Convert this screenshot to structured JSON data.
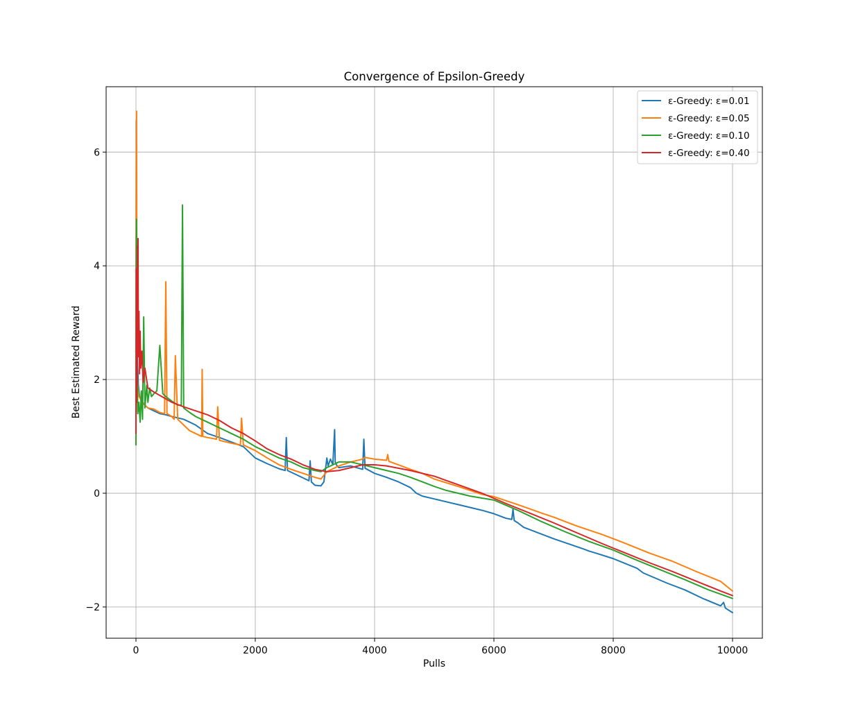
{
  "chart_data": {
    "type": "line",
    "title": "Convergence of Epsilon-Greedy",
    "xlabel": "Pulls",
    "ylabel": "Best Estimated Reward",
    "xlim": [
      -500,
      10500
    ],
    "ylim": [
      -2.55,
      7.15
    ],
    "x_ticks": [
      0,
      2000,
      4000,
      6000,
      8000,
      10000
    ],
    "x_tick_labels": [
      "0",
      "2000",
      "4000",
      "6000",
      "8000",
      "10000"
    ],
    "y_ticks": [
      -2,
      0,
      2,
      4,
      6
    ],
    "y_tick_labels": [
      "−2",
      "0",
      "2",
      "4",
      "6"
    ],
    "grid": true,
    "legend_position": "top-right",
    "series": [
      {
        "name": "ε-Greedy: ε=0.01",
        "color": "#1f77b4",
        "x": [
          0,
          5,
          10,
          20,
          40,
          60,
          100,
          150,
          200,
          300,
          400,
          500,
          600,
          800,
          1000,
          1200,
          1400,
          1600,
          1800,
          2000,
          2200,
          2400,
          2500,
          2520,
          2540,
          2700,
          2900,
          2920,
          2940,
          3000,
          3100,
          3150,
          3200,
          3220,
          3260,
          3300,
          3330,
          3340,
          3360,
          3400,
          3600,
          3800,
          3820,
          3840,
          4000,
          4200,
          4400,
          4600,
          4700,
          4800,
          5000,
          5400,
          5800,
          6000,
          6200,
          6300,
          6320,
          6340,
          6400,
          6500,
          7000,
          7500,
          7600,
          7700,
          8000,
          8400,
          8500,
          8900,
          9200,
          9500,
          9800,
          9850,
          9880,
          10000
        ],
        "y": [
          1.0,
          6.55,
          1.8,
          2.5,
          1.9,
          1.7,
          1.6,
          1.55,
          1.5,
          1.45,
          1.4,
          1.38,
          1.35,
          1.3,
          1.2,
          1.05,
          0.98,
          0.9,
          0.82,
          0.62,
          0.52,
          0.43,
          0.4,
          0.98,
          0.4,
          0.32,
          0.22,
          0.57,
          0.2,
          0.14,
          0.13,
          0.2,
          0.62,
          0.48,
          0.6,
          0.5,
          1.12,
          0.55,
          0.5,
          0.45,
          0.48,
          0.42,
          0.95,
          0.44,
          0.35,
          0.28,
          0.2,
          0.1,
          0.0,
          -0.05,
          -0.1,
          -0.2,
          -0.3,
          -0.36,
          -0.44,
          -0.46,
          -0.28,
          -0.48,
          -0.52,
          -0.6,
          -0.8,
          -0.98,
          -1.02,
          -1.05,
          -1.15,
          -1.32,
          -1.4,
          -1.58,
          -1.7,
          -1.85,
          -1.98,
          -1.92,
          -2.02,
          -2.1
        ]
      },
      {
        "name": "ε-Greedy: ε=0.05",
        "color": "#ff7f0e",
        "x": [
          0,
          5,
          10,
          15,
          20,
          30,
          50,
          100,
          150,
          200,
          300,
          400,
          480,
          500,
          520,
          600,
          640,
          660,
          700,
          800,
          900,
          1000,
          1100,
          1110,
          1120,
          1200,
          1350,
          1370,
          1400,
          1600,
          1750,
          1770,
          1800,
          2000,
          2200,
          2400,
          2600,
          2800,
          3000,
          3100,
          3200,
          3400,
          3600,
          3800,
          3820,
          3840,
          4000,
          4200,
          4220,
          4240,
          4400,
          4600,
          4800,
          5000,
          5400,
          5800,
          6000,
          6400,
          6800,
          7000,
          7400,
          7800,
          8200,
          8600,
          9000,
          9400,
          9800,
          10000
        ],
        "y": [
          1.2,
          5.8,
          6.72,
          3.5,
          2.1,
          1.85,
          1.7,
          1.62,
          1.55,
          1.5,
          1.48,
          1.42,
          1.4,
          3.72,
          1.4,
          1.35,
          1.3,
          2.42,
          1.3,
          1.2,
          1.1,
          1.05,
          1.0,
          2.18,
          1.0,
          0.98,
          0.95,
          1.52,
          0.93,
          0.88,
          0.85,
          1.32,
          0.85,
          0.75,
          0.62,
          0.5,
          0.42,
          0.35,
          0.28,
          0.25,
          0.38,
          0.48,
          0.55,
          0.6,
          0.62,
          0.63,
          0.6,
          0.58,
          0.68,
          0.56,
          0.5,
          0.42,
          0.35,
          0.25,
          0.12,
          -0.02,
          -0.06,
          -0.2,
          -0.35,
          -0.42,
          -0.58,
          -0.72,
          -0.88,
          -1.05,
          -1.2,
          -1.38,
          -1.55,
          -1.72
        ]
      },
      {
        "name": "ε-Greedy: ε=0.10",
        "color": "#2ca02c",
        "x": [
          0,
          5,
          10,
          15,
          20,
          30,
          50,
          70,
          90,
          110,
          130,
          150,
          180,
          200,
          230,
          260,
          300,
          350,
          400,
          450,
          500,
          600,
          700,
          760,
          780,
          800,
          900,
          1000,
          1200,
          1400,
          1600,
          1800,
          2000,
          2200,
          2400,
          2600,
          2800,
          3000,
          3100,
          3200,
          3400,
          3600,
          3800,
          4000,
          4200,
          4400,
          4600,
          4800,
          5000,
          5200,
          5600,
          6000,
          6400,
          6800,
          7200,
          7600,
          8000,
          8400,
          8800,
          9200,
          9600,
          10000
        ],
        "y": [
          0.85,
          4.05,
          4.82,
          1.6,
          2.2,
          1.4,
          1.6,
          1.25,
          1.8,
          1.3,
          3.1,
          1.5,
          1.9,
          1.6,
          1.85,
          1.7,
          1.75,
          1.8,
          2.6,
          1.75,
          1.7,
          1.62,
          1.55,
          1.55,
          5.07,
          1.5,
          1.42,
          1.35,
          1.25,
          1.15,
          1.05,
          0.95,
          0.82,
          0.72,
          0.62,
          0.55,
          0.45,
          0.4,
          0.38,
          0.45,
          0.55,
          0.55,
          0.5,
          0.45,
          0.4,
          0.35,
          0.28,
          0.2,
          0.12,
          0.05,
          -0.05,
          -0.12,
          -0.3,
          -0.5,
          -0.68,
          -0.85,
          -1.0,
          -1.18,
          -1.35,
          -1.52,
          -1.7,
          -1.85
        ]
      },
      {
        "name": "ε-Greedy: ε=0.40",
        "color": "#d62728",
        "x": [
          0,
          5,
          10,
          15,
          20,
          25,
          30,
          35,
          40,
          50,
          60,
          70,
          80,
          100,
          120,
          150,
          200,
          300,
          400,
          600,
          800,
          1000,
          1200,
          1400,
          1600,
          1800,
          2000,
          2200,
          2400,
          2600,
          2800,
          3000,
          3200,
          3400,
          3600,
          3800,
          4000,
          4200,
          4600,
          5000,
          5400,
          5800,
          6200,
          6600,
          7000,
          7400,
          7800,
          8200,
          8600,
          9000,
          9400,
          9800,
          10000
        ],
        "y": [
          1.05,
          3.95,
          1.6,
          3.45,
          1.9,
          4.35,
          2.8,
          4.48,
          2.4,
          3.2,
          2.1,
          2.85,
          2.2,
          2.5,
          1.95,
          2.2,
          1.85,
          1.78,
          1.72,
          1.6,
          1.52,
          1.45,
          1.38,
          1.28,
          1.15,
          1.05,
          0.92,
          0.78,
          0.68,
          0.6,
          0.5,
          0.42,
          0.38,
          0.4,
          0.45,
          0.5,
          0.5,
          0.48,
          0.4,
          0.3,
          0.15,
          0.0,
          -0.18,
          -0.35,
          -0.52,
          -0.7,
          -0.88,
          -1.05,
          -1.22,
          -1.38,
          -1.55,
          -1.72,
          -1.8
        ]
      }
    ]
  }
}
